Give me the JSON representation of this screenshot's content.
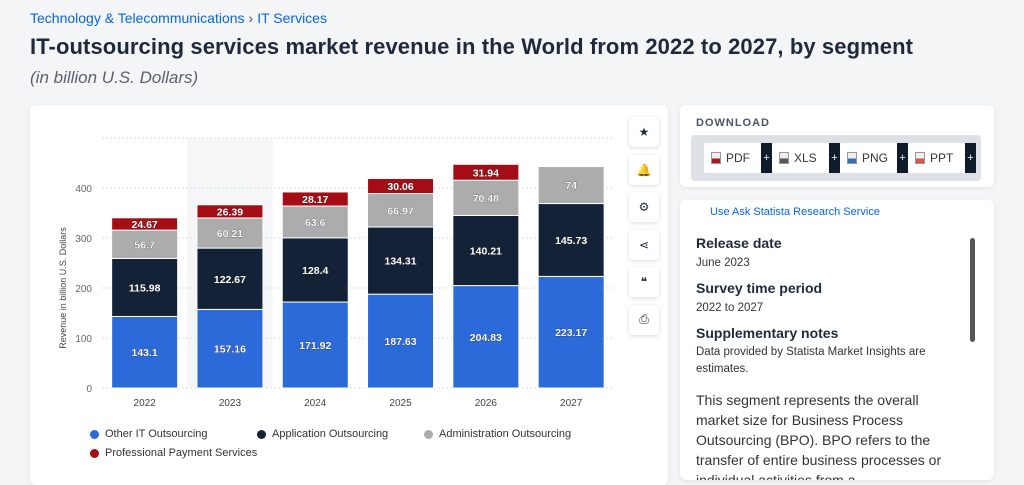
{
  "breadcrumb": [
    "Technology & Telecommunications",
    "IT Services"
  ],
  "title": "IT-outsourcing services market revenue in the World from 2022 to 2027, by segment",
  "subtitle": "(in billion U.S. Dollars)",
  "tools": [
    "star-icon",
    "bell-icon",
    "gear-icon",
    "share-icon",
    "quote-icon",
    "print-icon"
  ],
  "download": {
    "title": "DOWNLOAD",
    "buttons": [
      {
        "label": "PDF",
        "color": "#b0151d"
      },
      {
        "label": "XLS",
        "color": "#555555"
      },
      {
        "label": "PNG",
        "color": "#3b6fb5"
      },
      {
        "label": "PPT",
        "color": "#d9534f"
      }
    ],
    "plus": "+"
  },
  "info": {
    "cut_link": "Use Ask Statista Research Service",
    "release_label": "Release date",
    "release": "June 2023",
    "period_label": "Survey time period",
    "period": "2022 to 2027",
    "notes_label": "Supplementary notes",
    "notes": "Data provided by Statista Market Insights are estimates.",
    "description": "This segment represents the overall market size for Business Process Outsourcing (BPO). BPO refers to the transfer of entire business processes or individual activities from a"
  },
  "chart_data": {
    "type": "bar",
    "stacked": true,
    "categories": [
      "2022",
      "2023",
      "2024",
      "2025",
      "2026",
      "2027"
    ],
    "ylabel": "Revenue in billion U.S. Dollars",
    "ylim": [
      0,
      500
    ],
    "yticks": [
      0,
      100,
      200,
      300,
      400
    ],
    "grid": true,
    "legend": "bottom-left",
    "series": [
      {
        "name": "Other IT Outsourcing",
        "color": "#2b6ad8",
        "values": [
          143.1,
          157.16,
          171.92,
          187.63,
          204.83,
          223.17
        ]
      },
      {
        "name": "Application Outsourcing",
        "color": "#132236",
        "values": [
          115.98,
          122.67,
          128.4,
          134.31,
          140.21,
          145.73
        ]
      },
      {
        "name": "Administration Outsourcing",
        "color": "#acacac",
        "values": [
          56.7,
          60.21,
          63.6,
          66.97,
          70.48,
          74
        ]
      },
      {
        "name": "Professional Payment Services",
        "color": "#a50d16",
        "values": [
          24.67,
          26.39,
          28.17,
          30.06,
          31.94,
          null
        ]
      }
    ]
  }
}
